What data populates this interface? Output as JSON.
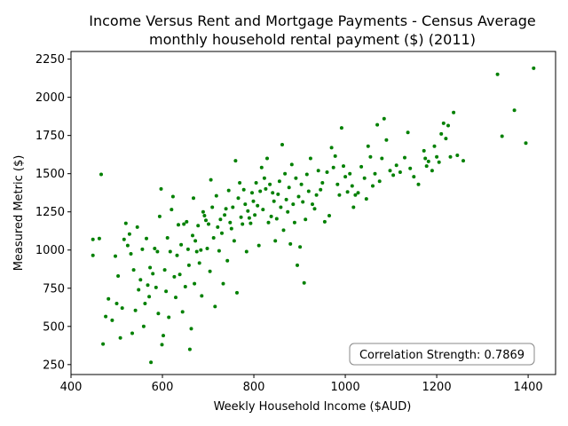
{
  "chart_data": {
    "type": "scatter",
    "title_line1": "Income Versus Rent and Mortgage Payments - Census Average",
    "title_line2": "monthly household rental payment ($) (2011)",
    "xlabel": "Weekly Household Income ($AUD)",
    "ylabel": "Measured Metric ($)",
    "xlim": [
      400,
      1460
    ],
    "ylim": [
      185,
      2300
    ],
    "x_ticks": [
      400,
      600,
      800,
      1000,
      1200,
      1400
    ],
    "y_ticks": [
      250,
      500,
      750,
      1000,
      1250,
      1500,
      1750,
      2000,
      2250
    ],
    "grid": false,
    "point_color": "#008000",
    "annotation": "Correlation Strength: 0.7869",
    "annotation_placement": "bottom-right",
    "points": [
      [
        448,
        1070
      ],
      [
        448,
        965
      ],
      [
        462,
        1075
      ],
      [
        466,
        1495
      ],
      [
        470,
        385
      ],
      [
        476,
        565
      ],
      [
        482,
        680
      ],
      [
        490,
        540
      ],
      [
        497,
        960
      ],
      [
        500,
        650
      ],
      [
        503,
        830
      ],
      [
        508,
        425
      ],
      [
        512,
        620
      ],
      [
        516,
        1070
      ],
      [
        520,
        1175
      ],
      [
        524,
        1030
      ],
      [
        528,
        1105
      ],
      [
        531,
        975
      ],
      [
        534,
        455
      ],
      [
        537,
        870
      ],
      [
        541,
        605
      ],
      [
        545,
        1150
      ],
      [
        548,
        740
      ],
      [
        552,
        805
      ],
      [
        556,
        1005
      ],
      [
        559,
        500
      ],
      [
        562,
        650
      ],
      [
        565,
        1075
      ],
      [
        568,
        770
      ],
      [
        571,
        695
      ],
      [
        573,
        885
      ],
      [
        575,
        265
      ],
      [
        579,
        845
      ],
      [
        583,
        1010
      ],
      [
        586,
        755
      ],
      [
        589,
        990
      ],
      [
        591,
        585
      ],
      [
        594,
        1220
      ],
      [
        597,
        1400
      ],
      [
        599,
        380
      ],
      [
        602,
        440
      ],
      [
        605,
        870
      ],
      [
        608,
        730
      ],
      [
        611,
        1080
      ],
      [
        614,
        560
      ],
      [
        617,
        990
      ],
      [
        620,
        1265
      ],
      [
        623,
        1350
      ],
      [
        626,
        825
      ],
      [
        629,
        690
      ],
      [
        632,
        965
      ],
      [
        635,
        1165
      ],
      [
        638,
        840
      ],
      [
        641,
        1035
      ],
      [
        644,
        595
      ],
      [
        647,
        1170
      ],
      [
        650,
        760
      ],
      [
        653,
        1185
      ],
      [
        656,
        1005
      ],
      [
        658,
        900
      ],
      [
        660,
        350
      ],
      [
        663,
        485
      ],
      [
        666,
        1095
      ],
      [
        668,
        1340
      ],
      [
        670,
        780
      ],
      [
        672,
        1060
      ],
      [
        675,
        990
      ],
      [
        678,
        1160
      ],
      [
        681,
        915
      ],
      [
        684,
        1000
      ],
      [
        686,
        700
      ],
      [
        689,
        1250
      ],
      [
        692,
        1225
      ],
      [
        695,
        1195
      ],
      [
        698,
        1010
      ],
      [
        701,
        1170
      ],
      [
        704,
        860
      ],
      [
        706,
        1460
      ],
      [
        709,
        1280
      ],
      [
        712,
        1080
      ],
      [
        715,
        630
      ],
      [
        718,
        1355
      ],
      [
        721,
        1150
      ],
      [
        724,
        995
      ],
      [
        727,
        1200
      ],
      [
        730,
        1110
      ],
      [
        733,
        780
      ],
      [
        736,
        1230
      ],
      [
        739,
        1270
      ],
      [
        742,
        930
      ],
      [
        745,
        1390
      ],
      [
        748,
        1180
      ],
      [
        751,
        1140
      ],
      [
        754,
        1280
      ],
      [
        757,
        1060
      ],
      [
        760,
        1585
      ],
      [
        763,
        720
      ],
      [
        766,
        1340
      ],
      [
        769,
        1440
      ],
      [
        772,
        1215
      ],
      [
        775,
        1170
      ],
      [
        778,
        1395
      ],
      [
        781,
        1300
      ],
      [
        784,
        990
      ],
      [
        787,
        1255
      ],
      [
        790,
        1210
      ],
      [
        793,
        1175
      ],
      [
        796,
        1375
      ],
      [
        799,
        1320
      ],
      [
        802,
        1230
      ],
      [
        805,
        1440
      ],
      [
        808,
        1290
      ],
      [
        811,
        1030
      ],
      [
        814,
        1385
      ],
      [
        817,
        1540
      ],
      [
        820,
        1265
      ],
      [
        823,
        1470
      ],
      [
        826,
        1400
      ],
      [
        829,
        1600
      ],
      [
        832,
        1180
      ],
      [
        835,
        1430
      ],
      [
        838,
        1220
      ],
      [
        841,
        1375
      ],
      [
        844,
        1320
      ],
      [
        847,
        1060
      ],
      [
        850,
        1205
      ],
      [
        853,
        1365
      ],
      [
        856,
        1450
      ],
      [
        859,
        1280
      ],
      [
        862,
        1690
      ],
      [
        865,
        1130
      ],
      [
        868,
        1500
      ],
      [
        871,
        1330
      ],
      [
        874,
        1250
      ],
      [
        877,
        1410
      ],
      [
        880,
        1040
      ],
      [
        883,
        1560
      ],
      [
        886,
        1300
      ],
      [
        889,
        1180
      ],
      [
        892,
        1470
      ],
      [
        895,
        900
      ],
      [
        898,
        1350
      ],
      [
        901,
        1020
      ],
      [
        904,
        1430
      ],
      [
        907,
        1315
      ],
      [
        910,
        785
      ],
      [
        913,
        1200
      ],
      [
        916,
        1495
      ],
      [
        920,
        1385
      ],
      [
        924,
        1600
      ],
      [
        928,
        1300
      ],
      [
        933,
        1270
      ],
      [
        937,
        1360
      ],
      [
        941,
        1520
      ],
      [
        946,
        1395
      ],
      [
        950,
        1440
      ],
      [
        955,
        1185
      ],
      [
        960,
        1510
      ],
      [
        965,
        1225
      ],
      [
        970,
        1670
      ],
      [
        974,
        1540
      ],
      [
        978,
        1615
      ],
      [
        983,
        1430
      ],
      [
        987,
        1360
      ],
      [
        992,
        1800
      ],
      [
        996,
        1550
      ],
      [
        1000,
        1480
      ],
      [
        1005,
        1380
      ],
      [
        1010,
        1500
      ],
      [
        1015,
        1420
      ],
      [
        1018,
        1280
      ],
      [
        1022,
        1360
      ],
      [
        1028,
        1375
      ],
      [
        1035,
        1545
      ],
      [
        1042,
        1470
      ],
      [
        1046,
        1335
      ],
      [
        1050,
        1680
      ],
      [
        1055,
        1610
      ],
      [
        1060,
        1420
      ],
      [
        1065,
        1500
      ],
      [
        1070,
        1820
      ],
      [
        1075,
        1450
      ],
      [
        1080,
        1600
      ],
      [
        1085,
        1860
      ],
      [
        1090,
        1720
      ],
      [
        1098,
        1520
      ],
      [
        1105,
        1490
      ],
      [
        1112,
        1555
      ],
      [
        1120,
        1510
      ],
      [
        1130,
        1605
      ],
      [
        1137,
        1770
      ],
      [
        1142,
        1535
      ],
      [
        1150,
        1480
      ],
      [
        1160,
        1430
      ],
      [
        1172,
        1650
      ],
      [
        1175,
        1600
      ],
      [
        1178,
        1550
      ],
      [
        1182,
        1580
      ],
      [
        1190,
        1520
      ],
      [
        1195,
        1680
      ],
      [
        1200,
        1610
      ],
      [
        1205,
        1575
      ],
      [
        1210,
        1760
      ],
      [
        1215,
        1830
      ],
      [
        1220,
        1730
      ],
      [
        1225,
        1815
      ],
      [
        1230,
        1610
      ],
      [
        1237,
        1900
      ],
      [
        1245,
        1620
      ],
      [
        1258,
        1585
      ],
      [
        1333,
        2150
      ],
      [
        1343,
        1745
      ],
      [
        1370,
        1915
      ],
      [
        1395,
        1700
      ],
      [
        1412,
        2190
      ]
    ]
  }
}
